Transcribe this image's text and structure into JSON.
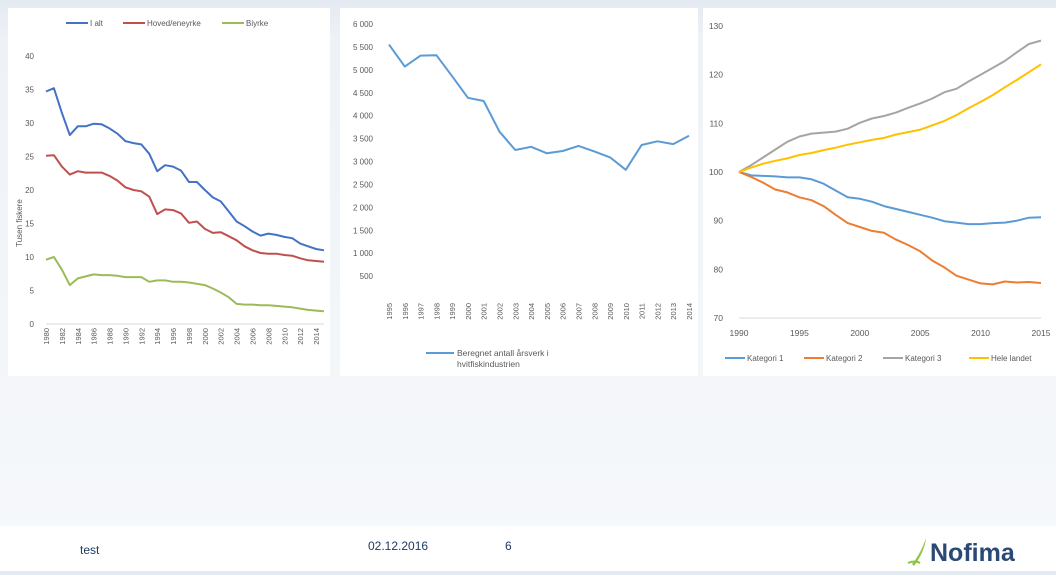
{
  "footer": {
    "left_text": "test",
    "date": "02.12.2016",
    "page": "6",
    "logo_text": "Nofima"
  },
  "colors": {
    "blue": "#4472c4",
    "red": "#c0504d",
    "green": "#9bbb59",
    "lightblue": "#5b9bd5",
    "orange": "#ed7d31",
    "gray": "#a5a5a5",
    "yellow": "#ffc000"
  },
  "chart_data": [
    {
      "type": "line",
      "title": "",
      "ylabel": "Tusen fiskere",
      "xlabel": "",
      "ylim": [
        0,
        40
      ],
      "yticks": [
        0,
        5,
        10,
        15,
        20,
        25,
        30,
        35,
        40
      ],
      "legend_position": "top",
      "x": [
        1980,
        1981,
        1982,
        1983,
        1984,
        1985,
        1986,
        1987,
        1988,
        1989,
        1990,
        1991,
        1992,
        1993,
        1994,
        1995,
        1996,
        1997,
        1998,
        1999,
        2000,
        2001,
        2002,
        2003,
        2004,
        2005,
        2006,
        2007,
        2008,
        2009,
        2010,
        2011,
        2012,
        2013,
        2014,
        2015
      ],
      "xticks": [
        "1980",
        "1982",
        "1984",
        "1986",
        "1988",
        "1990",
        "1992",
        "1994",
        "1996",
        "1998",
        "2000",
        "2002",
        "2004",
        "2006",
        "2008",
        "2010",
        "2012",
        "2014"
      ],
      "series": [
        {
          "name": "I alt",
          "color": "#4472c4",
          "values": [
            34.7,
            35.2,
            31.5,
            28.2,
            29.5,
            29.5,
            29.9,
            29.8,
            29.2,
            28.4,
            27.3,
            27.0,
            26.8,
            25.4,
            22.8,
            23.7,
            23.5,
            22.9,
            21.2,
            21.2,
            20.0,
            18.9,
            18.3,
            16.8,
            15.3,
            14.6,
            13.8,
            13.2,
            13.5,
            13.3,
            13.0,
            12.8,
            12.0,
            11.6,
            11.2,
            11.0
          ]
        },
        {
          "name": "Hoved/eneyrke",
          "color": "#c0504d",
          "values": [
            25.1,
            25.2,
            23.5,
            22.3,
            22.8,
            22.6,
            22.6,
            22.6,
            22.1,
            21.4,
            20.4,
            20.0,
            19.8,
            19.0,
            16.4,
            17.1,
            17.0,
            16.5,
            15.1,
            15.3,
            14.2,
            13.6,
            13.7,
            13.1,
            12.5,
            11.6,
            11.0,
            10.6,
            10.5,
            10.5,
            10.3,
            10.2,
            9.8,
            9.5,
            9.4,
            9.3
          ]
        },
        {
          "name": "Biyrke",
          "color": "#9bbb59",
          "values": [
            9.6,
            10.0,
            8.1,
            5.8,
            6.8,
            7.1,
            7.4,
            7.3,
            7.3,
            7.2,
            7.0,
            7.0,
            7.0,
            6.3,
            6.5,
            6.5,
            6.3,
            6.3,
            6.2,
            6.0,
            5.8,
            5.3,
            4.7,
            4.0,
            3.0,
            2.9,
            2.9,
            2.8,
            2.8,
            2.7,
            2.6,
            2.5,
            2.3,
            2.1,
            2.0,
            1.9
          ]
        }
      ]
    },
    {
      "type": "line",
      "title": "",
      "xlabel": "",
      "ylabel": "",
      "ylim": [
        0,
        6000
      ],
      "yticks": [
        "500",
        "1 000",
        "1 500",
        "2 000",
        "2 500",
        "3 000",
        "3 500",
        "4 000",
        "4 500",
        "5 000",
        "5 500",
        "6 000"
      ],
      "legend_position": "bottom",
      "x": [
        "1995",
        "1996",
        "1997",
        "1998",
        "1999",
        "2000",
        "2001",
        "2002",
        "2003",
        "2004",
        "2005",
        "2006",
        "2007",
        "2008",
        "2009",
        "2010",
        "2011",
        "2012",
        "2013",
        "2014"
      ],
      "series": [
        {
          "name": "Beregnet antall årsverk i hvitfiskindustrien",
          "color": "#5b9bd5",
          "values": [
            5550,
            5070,
            5310,
            5320,
            4860,
            4390,
            4320,
            3650,
            3250,
            3320,
            3180,
            3230,
            3340,
            3220,
            3090,
            2820,
            3360,
            3440,
            3380,
            3560
          ]
        }
      ]
    },
    {
      "type": "line",
      "title": "",
      "xlabel": "",
      "ylabel": "",
      "ylim": [
        70,
        130
      ],
      "yticks": [
        70,
        80,
        90,
        100,
        110,
        120,
        130
      ],
      "xticks": [
        1990,
        1995,
        2000,
        2005,
        2010,
        2015
      ],
      "legend_position": "bottom",
      "x": [
        1990,
        1991,
        1992,
        1993,
        1994,
        1995,
        1996,
        1997,
        1998,
        1999,
        2000,
        2001,
        2002,
        2003,
        2004,
        2005,
        2006,
        2007,
        2008,
        2009,
        2010,
        2011,
        2012,
        2013,
        2014,
        2015
      ],
      "series": [
        {
          "name": "Kategori 1",
          "color": "#5b9bd5",
          "values": [
            100,
            99.3,
            99.2,
            99.1,
            98.9,
            98.9,
            98.5,
            97.6,
            96.2,
            94.8,
            94.5,
            93.9,
            93.0,
            92.4,
            91.8,
            91.2,
            90.6,
            89.9,
            89.6,
            89.3,
            89.3,
            89.5,
            89.6,
            90.0,
            90.6,
            90.7
          ]
        },
        {
          "name": "Kategori 2",
          "color": "#ed7d31",
          "values": [
            100,
            99.0,
            97.8,
            96.4,
            95.8,
            94.8,
            94.2,
            93.0,
            91.2,
            89.5,
            88.7,
            87.9,
            87.5,
            86.1,
            85.0,
            83.7,
            81.8,
            80.4,
            78.7,
            77.9,
            77.1,
            76.9,
            77.5,
            77.3,
            77.4,
            77.2
          ]
        },
        {
          "name": "Kategori 3",
          "color": "#a5a5a5",
          "values": [
            100,
            101.4,
            103.0,
            104.6,
            106.2,
            107.3,
            107.9,
            108.1,
            108.3,
            108.9,
            110.1,
            111.0,
            111.5,
            112.2,
            113.2,
            114.1,
            115.1,
            116.4,
            117.1,
            118.6,
            120.0,
            121.4,
            122.8,
            124.6,
            126.3,
            127.0
          ]
        },
        {
          "name": "Hele landet",
          "color": "#ffc000",
          "values": [
            100,
            100.9,
            101.7,
            102.3,
            102.8,
            103.5,
            103.9,
            104.5,
            105.0,
            105.6,
            106.1,
            106.6,
            107.0,
            107.7,
            108.2,
            108.7,
            109.6,
            110.5,
            111.7,
            113.1,
            114.4,
            115.8,
            117.4,
            118.9,
            120.5,
            122.1
          ]
        }
      ]
    }
  ]
}
